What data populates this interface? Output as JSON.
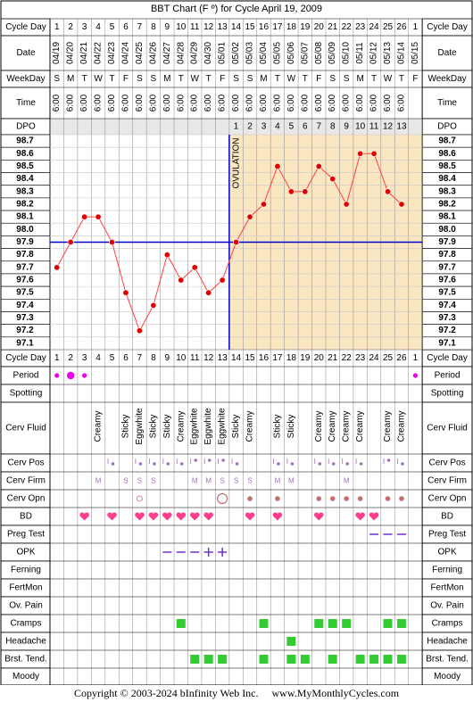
{
  "title": "BBT Chart (F º) for Cycle April 19, 2009",
  "footer": {
    "copyright": "Copyright © 2003-2024 bInfinity Web Inc.",
    "site": "www.MyMonthlyCycles.com"
  },
  "row_labels": {
    "cycle_day": "Cycle Day",
    "date": "Date",
    "weekday": "WeekDay",
    "time": "Time",
    "dpo": "DPO",
    "period": "Period",
    "spotting": "Spotting",
    "cerv_fluid": "Cerv Fluid",
    "cerv_pos": "Cerv Pos",
    "cerv_firm": "Cerv Firm",
    "cerv_opn": "Cerv Opn",
    "bd": "BD",
    "preg_test": "Preg Test",
    "opk": "OPK",
    "ferning": "Ferning",
    "fertmon": "FertMon",
    "ov_pain": "Ov. Pain",
    "cramps": "Cramps",
    "headache": "Headache",
    "brst_tend": "Brst. Tend.",
    "moody": "Moody"
  },
  "colors": {
    "grid": "#c8c8c8",
    "line": "#ff4040",
    "point": "#e00000",
    "ovulation": "#0000cc",
    "coverline": "#0000cc",
    "shade": "#fbe6c2",
    "label_bg": "#e8e8e8",
    "period": "#ee00ee",
    "mucus_dot": "#a070c0",
    "heart": "#ff3d8c",
    "green": "#33cc33",
    "opk": "#7030d0"
  },
  "chart_data": {
    "type": "line",
    "title": "BBT Chart (F º) for Cycle April 19, 2009",
    "cycle_days": [
      "1",
      "2",
      "3",
      "4",
      "5",
      "6",
      "7",
      "8",
      "9",
      "10",
      "11",
      "12",
      "13",
      "14",
      "15",
      "16",
      "17",
      "18",
      "19",
      "20",
      "21",
      "22",
      "23",
      "24",
      "25",
      "26",
      "1"
    ],
    "dates": [
      "04/19",
      "04/20",
      "04/21",
      "04/22",
      "04/23",
      "04/24",
      "04/25",
      "04/26",
      "04/27",
      "04/28",
      "04/29",
      "04/30",
      "05/01",
      "05/02",
      "05/03",
      "05/04",
      "05/05",
      "05/06",
      "05/07",
      "05/08",
      "05/09",
      "05/10",
      "05/11",
      "05/12",
      "05/13",
      "05/14",
      "05/15"
    ],
    "weekdays": [
      "S",
      "M",
      "T",
      "W",
      "T",
      "F",
      "S",
      "S",
      "M",
      "T",
      "W",
      "T",
      "F",
      "S",
      "S",
      "M",
      "T",
      "W",
      "T",
      "F",
      "S",
      "S",
      "M",
      "T",
      "W",
      "T",
      "F"
    ],
    "times": [
      "6:00",
      "6:00",
      "6:00",
      "6:00",
      "6:00",
      "6:00",
      "6:00",
      "6:00",
      "6:00",
      "6:00",
      "6:00",
      "6:00",
      "6:00",
      "6:00",
      "6:00",
      "6:00",
      "6:00",
      "6:00",
      "6:00",
      "6:00",
      "6:00",
      "6:00",
      "6:00",
      "6:00",
      "6:00",
      "6:00",
      ""
    ],
    "dpo": [
      "",
      "",
      "",
      "",
      "",
      "",
      "",
      "",
      "",
      "",
      "",
      "",
      "",
      "1",
      "2",
      "3",
      "4",
      "5",
      "6",
      "7",
      "8",
      "9",
      "10",
      "11",
      "12",
      "13",
      ""
    ],
    "temperatures": [
      97.7,
      97.9,
      98.1,
      98.1,
      97.9,
      97.5,
      97.2,
      97.4,
      97.8,
      97.6,
      97.7,
      97.5,
      97.6,
      97.9,
      98.1,
      98.2,
      98.5,
      98.3,
      98.3,
      98.5,
      98.4,
      98.2,
      98.6,
      98.6,
      98.3,
      98.2,
      null
    ],
    "ylim": [
      97.1,
      98.7
    ],
    "yticks": [
      "98.7",
      "98.6",
      "98.5",
      "98.4",
      "98.3",
      "98.2",
      "98.1",
      "98.0",
      "97.9",
      "97.8",
      "97.7",
      "97.6",
      "97.5",
      "97.4",
      "97.3",
      "97.2",
      "97.1"
    ],
    "coverline": 97.9,
    "ovulation_day": 13,
    "ovulation_label": "OVULATION",
    "period": [
      true,
      true,
      true,
      false,
      false,
      false,
      false,
      false,
      false,
      false,
      false,
      false,
      false,
      false,
      false,
      false,
      false,
      false,
      false,
      false,
      false,
      false,
      false,
      false,
      false,
      false,
      true
    ],
    "period_sizes": [
      "s",
      "l",
      "s",
      "",
      "",
      "",
      "",
      "",
      "",
      "",
      "",
      "",
      "",
      "",
      "",
      "",
      "",
      "",
      "",
      "",
      "",
      "",
      "",
      "",
      "",
      "",
      "s"
    ],
    "cerv_fluid": [
      "",
      "",
      "",
      "Creamy",
      "",
      "Sticky",
      "Eggwhite",
      "Sticky",
      "Sticky",
      "Creamy",
      "Eggwhite",
      "Eggwhite",
      "Eggwhite",
      "Sticky",
      "Creamy",
      "",
      "Sticky",
      "Sticky",
      "",
      "Creamy",
      "Creamy",
      "Creamy",
      "Creamy",
      "",
      "Creamy",
      "Creamy",
      ""
    ],
    "cerv_pos": [
      "",
      "",
      "",
      "",
      "",
      "",
      "",
      "",
      "",
      "",
      "",
      "",
      "",
      "",
      "",
      "",
      "",
      "",
      "",
      "",
      "",
      "",
      "",
      "",
      "",
      "",
      ""
    ],
    "cerv_pos_marks": [
      "",
      "",
      "",
      "",
      "low",
      "",
      "low",
      "low",
      "low",
      "low",
      "high",
      "high",
      "high",
      "low",
      "",
      "",
      "low",
      "low",
      "",
      "low",
      "low",
      "low",
      "low",
      "",
      "high",
      "low",
      ""
    ],
    "cerv_firm": [
      "",
      "",
      "",
      "M",
      "",
      "S",
      "S",
      "S",
      "",
      "",
      "M",
      "M",
      "S",
      "S",
      "S",
      "",
      "M",
      "M",
      "",
      "",
      "",
      "M",
      "",
      "",
      "",
      "",
      ""
    ],
    "cerv_opn": [
      "",
      "",
      "",
      "",
      "",
      "",
      "o",
      "",
      "",
      "",
      "",
      "",
      "O",
      "",
      "•",
      "",
      "•",
      "",
      "",
      "•",
      "•",
      "•",
      "•",
      "",
      "•",
      "•",
      ""
    ],
    "bd": [
      false,
      false,
      true,
      false,
      true,
      false,
      true,
      true,
      true,
      true,
      true,
      true,
      false,
      false,
      true,
      false,
      true,
      false,
      false,
      true,
      false,
      false,
      true,
      true,
      false,
      false,
      false
    ],
    "preg_test": [
      "",
      "",
      "",
      "",
      "",
      "",
      "",
      "",
      "",
      "",
      "",
      "",
      "",
      "",
      "",
      "",
      "",
      "",
      "",
      "",
      "",
      "",
      "",
      "-",
      "-",
      "-",
      ""
    ],
    "opk": [
      "",
      "",
      "",
      "",
      "",
      "",
      "",
      "",
      "-",
      "-",
      "-",
      "+",
      "+",
      "",
      "",
      "",
      "",
      "",
      "",
      "",
      "",
      "",
      "",
      "",
      "",
      "",
      ""
    ],
    "cramps": [
      false,
      false,
      false,
      false,
      false,
      false,
      false,
      false,
      false,
      true,
      false,
      false,
      false,
      false,
      false,
      true,
      false,
      false,
      false,
      true,
      true,
      true,
      false,
      false,
      true,
      true,
      false
    ],
    "headache": [
      false,
      false,
      false,
      false,
      false,
      false,
      false,
      false,
      false,
      false,
      false,
      false,
      false,
      false,
      false,
      false,
      false,
      true,
      false,
      false,
      false,
      false,
      false,
      false,
      false,
      false,
      false
    ],
    "brst_tend": [
      false,
      false,
      false,
      false,
      false,
      false,
      false,
      false,
      false,
      false,
      true,
      true,
      true,
      false,
      false,
      true,
      false,
      true,
      true,
      false,
      true,
      false,
      true,
      true,
      true,
      true,
      false
    ]
  }
}
